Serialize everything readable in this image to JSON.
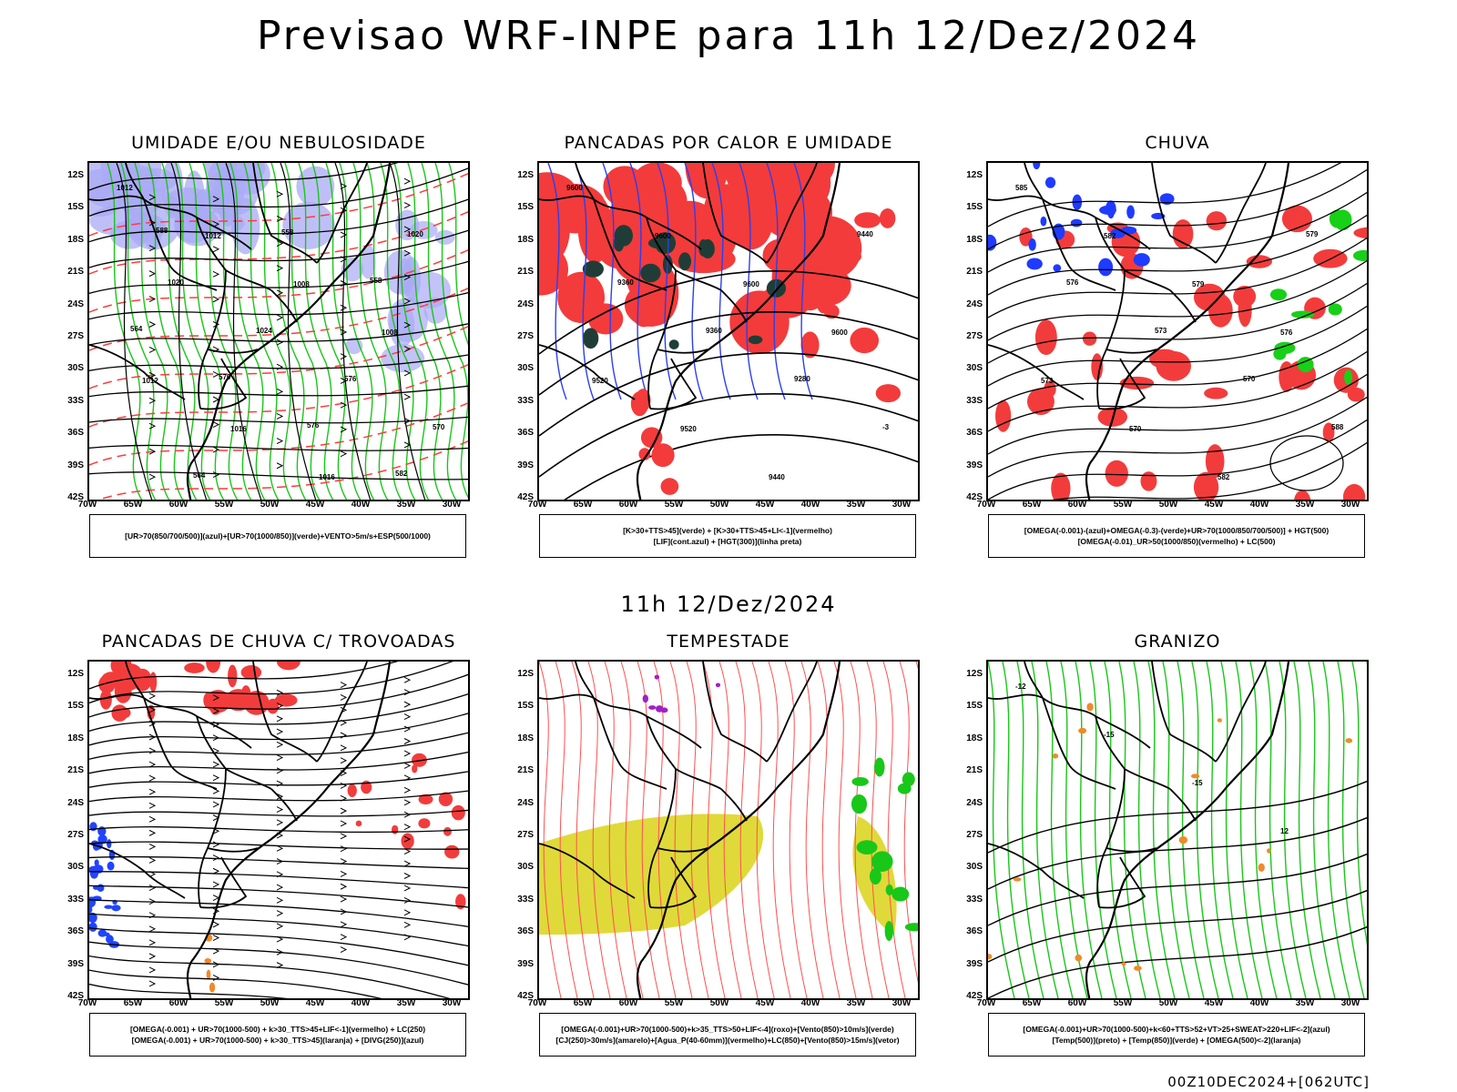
{
  "title": "Previsao WRF-INPE  para 11h 12/Dez/2024",
  "mid_title": "11h 12/Dez/2024",
  "footer": "00Z10DEC2024+[062UTC]",
  "lat_ticks": [
    "12S",
    "15S",
    "18S",
    "21S",
    "24S",
    "27S",
    "30S",
    "33S",
    "36S",
    "39S",
    "42S"
  ],
  "lon_ticks": [
    "70W",
    "65W",
    "60W",
    "55W",
    "50W",
    "45W",
    "40W",
    "35W",
    "30W"
  ],
  "panels": [
    {
      "id": "umidade",
      "title": "UMIDADE E/OU NEBULOSIDADE",
      "legend": [
        "[UR>70(850/700/500)](azul)+[UR>70(1000/850)](verde)+VENTO>5m/s+ESP(500/1000)"
      ],
      "contour_labels": [
        "1012",
        "1012",
        "1008",
        "1008",
        "1012",
        "1016",
        "1016",
        "1020",
        "1020",
        "1024",
        "576",
        "570",
        "564",
        "558",
        "558",
        "564",
        "570",
        "576",
        "582",
        "588"
      ],
      "colors": {
        "humidity_upper": "#a9aaf5",
        "humidity_low": "#19c719",
        "thickness": "#ff3b3b",
        "pressure": "#000000"
      }
    },
    {
      "id": "pancadas-calor",
      "title": "PANCADAS POR CALOR E UMIDADE",
      "legend": [
        "[K>30+TTS>45](verde)  +  [K>30+TTS>45+LI<-1](vermelho)",
        "[LIF](cont.azul)  +  [HGT(300)](linha preta)"
      ],
      "contour_labels": [
        "9600",
        "9600",
        "9600",
        "9600",
        "9520",
        "9520",
        "9440",
        "9440",
        "9360",
        "9360",
        "9280",
        "-3"
      ],
      "colors": {
        "convective": "#f33b3b",
        "unstable": "#1f3d36",
        "lifted": "#2b3ff0",
        "height": "#000000"
      }
    },
    {
      "id": "chuva",
      "title": "CHUVA",
      "legend": [
        "[OMEGA(-0.001)-(azul)+OMEGA(-0.3)-(verde)+UR>70(1000/850/700/500)]  +  HGT(500)",
        "[OMEGA(-0.01)_UR>50(1000/850)(vermelho)  +  LC(500)"
      ],
      "contour_labels": [
        "585",
        "582",
        "579",
        "576",
        "573",
        "570",
        "582",
        "579",
        "576",
        "573",
        "570",
        "588"
      ],
      "colors": {
        "omega": "#1f3bff",
        "omega_strong": "#17d017",
        "rain": "#f23c3c"
      }
    },
    {
      "id": "trovoadas",
      "title": "PANCADAS DE CHUVA C/ TROVOADAS",
      "legend": [
        "[OMEGA(-0.001)  +  UR>70(1000-500)  +  k>30_TTS>45+LIF<-1](vermelho)  +  LC(250)",
        "[OMEGA(-0.001)  +  UR>70(1000-500)  +  k>30_TTS>45](laranja)  +  [DIVG(250)](azul)"
      ],
      "contour_labels": [],
      "colors": {
        "storm": "#f23c3c",
        "orange": "#f08a2a",
        "divergence": "#2044ff"
      }
    },
    {
      "id": "tempestade",
      "title": "TEMPESTADE",
      "legend": [
        "[OMEGA(-0.001)+UR>70(1000-500)+k>35_TTS>50+LIF<-4](roxo)+[Vento(850)>10m/s](verde)",
        "[CJ(250)>30m/s](amarelo)+[Agua_P(40-60mm)](vermelho)+LC(850)+[Vento(850)>15m/s](vetor)"
      ],
      "contour_labels": [],
      "colors": {
        "jet": "#e0d93a",
        "wind": "#19c719",
        "water": "#ff5050",
        "purple": "#a020c8"
      }
    },
    {
      "id": "granizo",
      "title": "GRANIZO",
      "legend": [
        "[OMEGA(-0.001)+UR>70(1000-500)+k<60+TTS>52+VT>25+SWEAT>220+LIF<-2](azul)",
        "[Temp(500)](preto)  +  [Temp(850)](verde)  +  [OMEGA(500)<-2](laranja)"
      ],
      "contour_labels": [
        "-12",
        "-15",
        "-15",
        "12"
      ],
      "colors": {
        "temp850": "#19c719",
        "temp500": "#000000",
        "omega": "#f08a2a"
      }
    }
  ]
}
